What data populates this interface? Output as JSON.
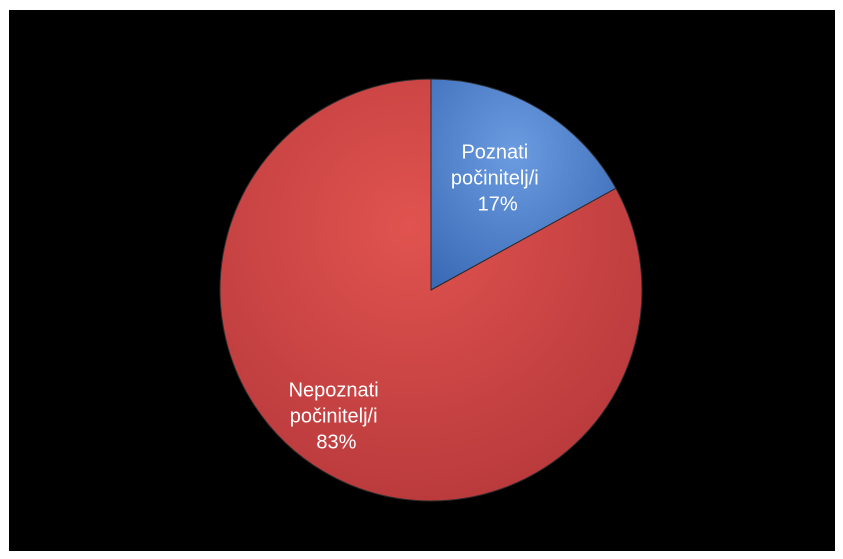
{
  "chart_data": {
    "type": "pie",
    "title": "",
    "slices": [
      {
        "label_lines": [
          "Poznati",
          "počinitelj/i"
        ],
        "value": 17,
        "value_text": "17%",
        "color": "#4a80cc"
      },
      {
        "label_lines": [
          "Nepoznati",
          "počinitelj/i"
        ],
        "value": 83,
        "value_text": "83%",
        "color": "#cf4544"
      }
    ],
    "start_angle_deg": 0,
    "direction": "clockwise",
    "legend": "none",
    "data_labels": "inside"
  }
}
